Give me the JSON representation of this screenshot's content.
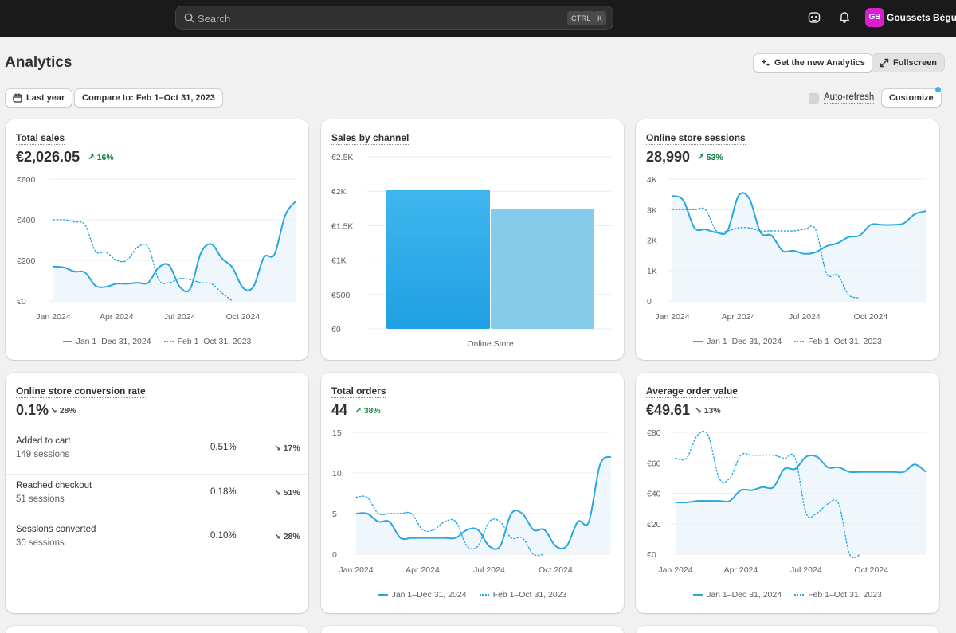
{
  "topbar": {
    "search_placeholder": "Search",
    "shortcut_ctrl": "CTRL",
    "shortcut_key": "K",
    "user_initials": "GB",
    "user_name": "Goussets Béguin",
    "avatar_color": "#d71ed0"
  },
  "header": {
    "title": "Analytics",
    "new_analytics_label": "Get the new Analytics",
    "fullscreen_label": "Fullscreen"
  },
  "filters": {
    "date_range_label": "Last year",
    "compare_label": "Compare to: Feb 1–Oct 31, 2023",
    "auto_refresh_label": "Auto-refresh",
    "customize_label": "Customize"
  },
  "colors": {
    "accent": "#29a7e1",
    "bar_primary": "#1fa0e3",
    "bar_secondary": "#85cceb",
    "positive": "#13823f"
  },
  "legend": {
    "current": "Jan 1–Dec 31, 2024",
    "previous": "Feb 1–Oct 31, 2023"
  },
  "cards": {
    "total_sales": {
      "title": "Total sales",
      "value": "€2,026.05",
      "delta": "16%",
      "delta_dir": "up",
      "chart_data": {
        "type": "line",
        "ylim": [
          0,
          600
        ],
        "yticks": [
          "€0",
          "€200",
          "€400",
          "€600"
        ],
        "xticks": [
          "Jan 2024",
          "Apr 2024",
          "Jul 2024",
          "Oct 2024"
        ],
        "series": [
          {
            "name": "Jan 1–Dec 31, 2024",
            "style": "solid",
            "x": [
              0,
              0.5,
              1,
              1.5,
              2,
              2.5,
              3,
              3.5,
              4,
              4.5,
              5,
              5.5,
              6,
              6.5,
              7,
              7.5,
              8,
              8.5,
              9,
              9.5,
              10,
              10.5,
              11,
              11.5
            ],
            "values": [
              170,
              165,
              145,
              140,
              75,
              70,
              85,
              85,
              90,
              90,
              165,
              175,
              70,
              60,
              235,
              280,
              210,
              165,
              65,
              70,
              215,
              230,
              420,
              490
            ]
          },
          {
            "name": "Feb 1–Oct 31, 2023",
            "style": "dotted",
            "x": [
              0,
              0.5,
              1,
              1.5,
              2,
              2.5,
              3,
              3.5,
              4,
              4.5,
              5,
              5.5,
              6,
              6.5,
              7,
              7.5,
              8,
              8.5
            ],
            "values": [
              400,
              400,
              390,
              375,
              245,
              240,
              200,
              200,
              265,
              265,
              105,
              90,
              110,
              105,
              90,
              85,
              40,
              0
            ]
          }
        ]
      }
    },
    "sales_by_channel": {
      "title": "Sales by channel",
      "chart_data": {
        "type": "bar",
        "categories": [
          "Online Store"
        ],
        "ylim": [
          0,
          2500
        ],
        "yticks": [
          "€0",
          "€500",
          "€1K",
          "€1.5K",
          "€2K",
          "€2.5K"
        ],
        "series": [
          {
            "name": "Jan 1–Dec 31, 2024",
            "values": [
              2026.05
            ]
          },
          {
            "name": "Feb 1–Oct 31, 2023",
            "values": [
              1745
            ]
          }
        ]
      }
    },
    "online_store_sessions": {
      "title": "Online store sessions",
      "value": "28,990",
      "delta": "53%",
      "delta_dir": "up",
      "chart_data": {
        "type": "line",
        "ylim": [
          0,
          4000
        ],
        "yticks": [
          "0",
          "1K",
          "2K",
          "3K",
          "4K"
        ],
        "xticks": [
          "Jan 2024",
          "Apr 2024",
          "Jul 2024",
          "Oct 2024"
        ],
        "series": [
          {
            "name": "Jan 1–Dec 31, 2024",
            "style": "solid",
            "x": [
              0,
              0.5,
              1,
              1.5,
              2,
              2.5,
              3,
              3.5,
              4,
              4.5,
              5,
              5.5,
              6,
              6.5,
              7,
              7.5,
              8,
              8.5,
              9,
              9.5,
              10,
              10.5,
              11,
              11.5
            ],
            "values": [
              3450,
              3300,
              2400,
              2350,
              2250,
              2300,
              3450,
              3350,
              2250,
              2150,
              1650,
              1650,
              1550,
              1600,
              1800,
              1900,
              2100,
              2150,
              2500,
              2500,
              2500,
              2550,
              2850,
              2950
            ]
          },
          {
            "name": "Feb 1–Oct 31, 2023",
            "style": "dotted",
            "x": [
              0,
              0.5,
              1,
              1.5,
              2,
              2.5,
              3,
              3.5,
              4,
              4.5,
              5,
              5.5,
              6,
              6.5,
              7,
              7.5,
              8,
              8.5
            ],
            "values": [
              3000,
              3000,
              3000,
              3000,
              2300,
              2300,
              2400,
              2400,
              2300,
              2300,
              2300,
              2300,
              2350,
              2350,
              900,
              850,
              200,
              100
            ]
          }
        ]
      }
    },
    "conversion_rate": {
      "title": "Online store conversion rate",
      "value": "0.1%",
      "delta": "28%",
      "delta_dir": "down",
      "rows": [
        {
          "name": "Added to cart",
          "sub": "149 sessions",
          "pct": "0.51%",
          "delta": "17%"
        },
        {
          "name": "Reached checkout",
          "sub": "51 sessions",
          "pct": "0.18%",
          "delta": "51%"
        },
        {
          "name": "Sessions converted",
          "sub": "30 sessions",
          "pct": "0.10%",
          "delta": "28%"
        }
      ]
    },
    "total_orders": {
      "title": "Total orders",
      "value": "44",
      "delta": "38%",
      "delta_dir": "up",
      "chart_data": {
        "type": "line",
        "ylim": [
          0,
          15
        ],
        "yticks": [
          "0",
          "5",
          "10",
          "15"
        ],
        "xticks": [
          "Jan 2024",
          "Apr 2024",
          "Jul 2024",
          "Oct 2024"
        ],
        "series": [
          {
            "name": "Jan 1–Dec 31, 2024",
            "style": "solid",
            "x": [
              0,
              0.5,
              1,
              1.5,
              2,
              2.5,
              3,
              3.5,
              4,
              4.5,
              5,
              5.5,
              6,
              6.5,
              7,
              7.5,
              8,
              8.5,
              9,
              9.5,
              10,
              10.5,
              11,
              11.5
            ],
            "values": [
              5,
              5,
              4,
              4,
              2,
              2,
              2,
              2,
              2,
              2,
              3,
              3,
              1,
              1,
              5,
              5,
              3,
              3,
              1,
              1,
              4,
              4,
              11,
              12
            ]
          },
          {
            "name": "Feb 1–Oct 31, 2023",
            "style": "dotted",
            "x": [
              0,
              0.5,
              1,
              1.5,
              2,
              2.5,
              3,
              3.5,
              4,
              4.5,
              5,
              5.5,
              6,
              6.5,
              7,
              7.5,
              8,
              8.5
            ],
            "values": [
              7,
              7,
              5,
              5,
              5,
              5,
              3,
              3,
              4,
              4,
              1,
              1,
              4,
              4,
              2,
              2,
              0,
              0
            ]
          }
        ]
      }
    },
    "average_order_value": {
      "title": "Average order value",
      "value": "€49.61",
      "delta": "13%",
      "delta_dir": "down",
      "chart_data": {
        "type": "line",
        "ylim": [
          0,
          80
        ],
        "yticks": [
          "€0",
          "€20",
          "€40",
          "€60",
          "€80"
        ],
        "xticks": [
          "Jan 2024",
          "Apr 2024",
          "Jul 2024",
          "Oct 2024"
        ],
        "series": [
          {
            "name": "Jan 1–Dec 31, 2024",
            "style": "solid",
            "x": [
              0,
              0.5,
              1,
              1.5,
              2,
              2.5,
              3,
              3.5,
              4,
              4.5,
              5,
              5.5,
              6,
              6.5,
              7,
              7.5,
              8,
              8.5,
              9,
              9.5,
              10,
              10.5,
              11,
              11.5
            ],
            "values": [
              34,
              34,
              35,
              35,
              35,
              35,
              42,
              42,
              44,
              44,
              56,
              56,
              64,
              64,
              57,
              57,
              54,
              54,
              54,
              54,
              54,
              54,
              59,
              54
            ]
          },
          {
            "name": "Feb 1–Oct 31, 2023",
            "style": "dotted",
            "x": [
              0,
              0.5,
              1,
              1.5,
              2,
              2.5,
              3,
              3.5,
              4,
              4.5,
              5,
              5.5,
              6,
              6.5,
              7,
              7.5,
              8,
              8.5
            ],
            "values": [
              63,
              63,
              78,
              78,
              50,
              50,
              65,
              65,
              65,
              65,
              63,
              63,
              27,
              27,
              33,
              33,
              0,
              0
            ]
          }
        ]
      }
    }
  }
}
